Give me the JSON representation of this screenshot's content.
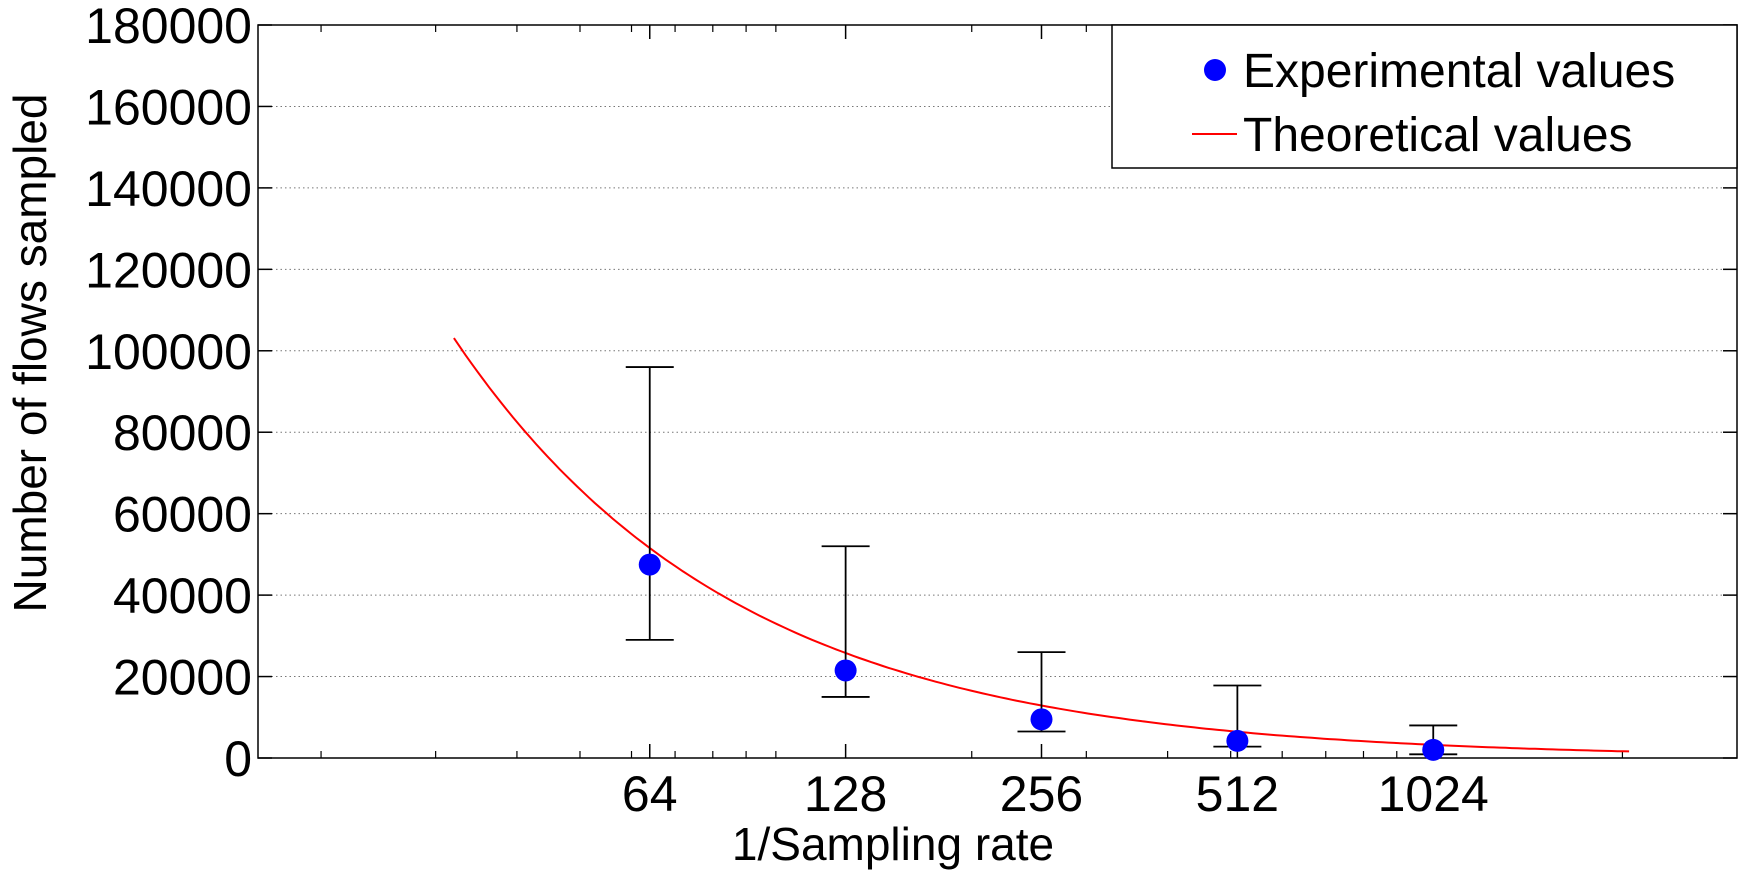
{
  "chart_data": {
    "type": "scatter",
    "title": "",
    "xlabel": "1/Sampling rate",
    "ylabel": "Number of flows sampled",
    "x_scale": "log2",
    "xlim": [
      16,
      3000
    ],
    "ylim": [
      0,
      180000
    ],
    "x_ticks": [
      64,
      128,
      256,
      512,
      1024
    ],
    "x_tick_labels": [
      "64",
      "128",
      "256",
      "512",
      "1024"
    ],
    "y_ticks": [
      0,
      20000,
      40000,
      60000,
      80000,
      100000,
      120000,
      140000,
      160000,
      180000
    ],
    "y_tick_labels": [
      "0",
      "20000",
      "40000",
      "60000",
      "80000",
      "100000",
      "120000",
      "140000",
      "160000",
      "180000"
    ],
    "grid": "horizontal dotted",
    "legend_position": "top-right",
    "series": [
      {
        "name": "Experimental values",
        "kind": "scatter-errorbar",
        "color": "#0000ff",
        "x": [
          64,
          128,
          256,
          512,
          1024
        ],
        "y": [
          47500,
          21500,
          9500,
          4200,
          2000
        ],
        "err_low": [
          29000,
          15000,
          6500,
          2800,
          900
        ],
        "err_high": [
          96000,
          52000,
          26000,
          17800,
          8000
        ]
      },
      {
        "name": "Theoretical values",
        "kind": "line",
        "color": "#ff0000",
        "function": "K/x",
        "K": 3300000,
        "x_range": [
          32,
          2048
        ]
      }
    ]
  }
}
